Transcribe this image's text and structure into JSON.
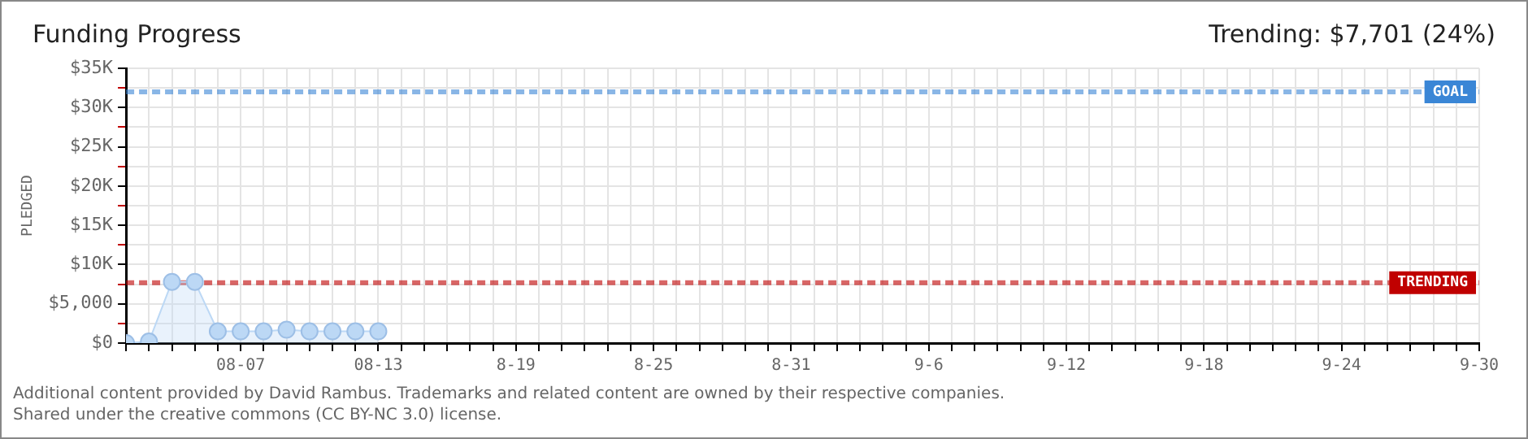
{
  "chart_data": {
    "type": "area",
    "title": "Funding Progress",
    "ylabel": "PLEDGED",
    "annotations": [
      "Trending: $7,701 (24%)",
      "Additional content provided by David Rambus. Trademarks and related content are owned by their respective companies.",
      "Shared under the creative commons (CC BY-NC 3.0) license."
    ],
    "x": [
      "--08-02",
      "--08-03",
      "--08-04",
      "--08-05",
      "--08-06",
      "--08-07",
      "--08-08",
      "--08-09",
      "--08-10",
      "--08-11",
      "--08-12",
      "--08-13"
    ],
    "series": [
      {
        "color": "#bcd8f5",
        "values": [
          0,
          200,
          7800,
          7800,
          1500,
          1500,
          1500,
          1700,
          1500,
          1500,
          1500,
          1500
        ]
      }
    ],
    "xlim": [
      "--08-02",
      "--09-30"
    ],
    "xticks": [
      {
        "value": "--08-02",
        "label": null
      },
      {
        "value": "--08-03",
        "label": null
      },
      {
        "value": "--08-04",
        "label": null
      },
      {
        "value": "--08-05",
        "label": null
      },
      {
        "value": "--08-06",
        "label": null
      },
      {
        "value": "--08-07",
        "label": "08-07"
      },
      {
        "value": "--08-08",
        "label": null
      },
      {
        "value": "--08-09",
        "label": null
      },
      {
        "value": "--08-10",
        "label": null
      },
      {
        "value": "--08-11",
        "label": null
      },
      {
        "value": "--08-12",
        "label": null
      },
      {
        "value": "--08-13",
        "label": "08-13"
      },
      {
        "value": "--08-14",
        "label": null
      },
      {
        "value": "--08-15",
        "label": null
      },
      {
        "value": "--08-16",
        "label": null
      },
      {
        "value": "--08-17",
        "label": null
      },
      {
        "value": "--08-18",
        "label": null
      },
      {
        "value": "--08-19",
        "label": "8-19"
      },
      {
        "value": "--08-20",
        "label": null
      },
      {
        "value": "--08-21",
        "label": null
      },
      {
        "value": "--08-22",
        "label": null
      },
      {
        "value": "--08-23",
        "label": null
      },
      {
        "value": "--08-24",
        "label": null
      },
      {
        "value": "--08-25",
        "label": "8-25"
      },
      {
        "value": "--08-26",
        "label": null
      },
      {
        "value": "--08-27",
        "label": null
      },
      {
        "value": "--08-28",
        "label": null
      },
      {
        "value": "--08-29",
        "label": null
      },
      {
        "value": "--08-30",
        "label": null
      },
      {
        "value": "--08-31",
        "label": "8-31"
      },
      {
        "value": "--09-01",
        "label": null
      },
      {
        "value": "--09-02",
        "label": null
      },
      {
        "value": "--09-03",
        "label": null
      },
      {
        "value": "--09-04",
        "label": null
      },
      {
        "value": "--09-05",
        "label": null
      },
      {
        "value": "--09-06",
        "label": "9-6"
      },
      {
        "value": "--09-07",
        "label": null
      },
      {
        "value": "--09-08",
        "label": null
      },
      {
        "value": "--09-09",
        "label": null
      },
      {
        "value": "--09-10",
        "label": null
      },
      {
        "value": "--09-11",
        "label": null
      },
      {
        "value": "--09-12",
        "label": "9-12"
      },
      {
        "value": "--09-13",
        "label": null
      },
      {
        "value": "--09-14",
        "label": null
      },
      {
        "value": "--09-15",
        "label": null
      },
      {
        "value": "--09-16",
        "label": null
      },
      {
        "value": "--09-17",
        "label": null
      },
      {
        "value": "--09-18",
        "label": "9-18"
      },
      {
        "value": "--09-19",
        "label": null
      },
      {
        "value": "--09-20",
        "label": null
      },
      {
        "value": "--09-21",
        "label": null
      },
      {
        "value": "--09-22",
        "label": null
      },
      {
        "value": "--09-23",
        "label": null
      },
      {
        "value": "--09-24",
        "label": "9-24"
      },
      {
        "value": "--09-25",
        "label": null
      },
      {
        "value": "--09-26",
        "label": null
      },
      {
        "value": "--09-27",
        "label": null
      },
      {
        "value": "--09-28",
        "label": null
      },
      {
        "value": "--09-29",
        "label": null
      },
      {
        "value": "--09-30",
        "label": "9-30"
      }
    ],
    "ylim": [
      0,
      35000
    ],
    "yticks": [
      {
        "value": 0,
        "label": "$0"
      },
      {
        "value": 2500,
        "label": null
      },
      {
        "value": 5000,
        "label": "$5,000"
      },
      {
        "value": 7500,
        "label": null
      },
      {
        "value": 10000,
        "label": "$10K"
      },
      {
        "value": 12500,
        "label": null
      },
      {
        "value": 15000,
        "label": "$15K"
      },
      {
        "value": 17500,
        "label": null
      },
      {
        "value": 20000,
        "label": "$20K"
      },
      {
        "value": 22500,
        "label": null
      },
      {
        "value": 25000,
        "label": "$25K"
      },
      {
        "value": 27500,
        "label": null
      },
      {
        "value": 30000,
        "label": "$30K"
      },
      {
        "value": 32500,
        "label": null
      },
      {
        "value": 35000,
        "label": "$35K"
      }
    ],
    "ref_lines": [
      {
        "axis": "y",
        "value": 32000,
        "label": "GOAL",
        "color": "#3a86d6",
        "line_style": "dashed"
      },
      {
        "axis": "y",
        "value": 7701,
        "label": "TRENDING",
        "color": "#c00000",
        "line_style": "dashed"
      }
    ],
    "grid": true,
    "legend": false,
    "marker": "circle",
    "line_style": "solid"
  }
}
